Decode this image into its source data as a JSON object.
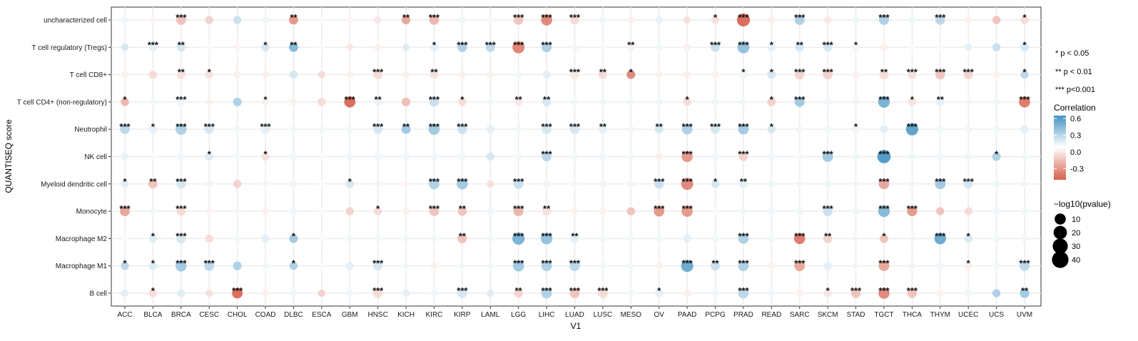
{
  "chart_data": {
    "type": "scatter",
    "subtype": "dot-heatmap",
    "xlabel": "V1",
    "ylabel": "QUANTISEQ score",
    "x_categories": [
      "ACC",
      "BLCA",
      "BRCA",
      "CESC",
      "CHOL",
      "COAD",
      "DLBC",
      "ESCA",
      "GBM",
      "HNSC",
      "KICH",
      "KIRC",
      "KIRP",
      "LAML",
      "LGG",
      "LIHC",
      "LUAD",
      "LUSC",
      "MESO",
      "OV",
      "PAAD",
      "PCPG",
      "PRAD",
      "READ",
      "SARC",
      "SKCM",
      "STAD",
      "TGCT",
      "THCA",
      "THYM",
      "UCEC",
      "UCS",
      "UVM"
    ],
    "y_categories": [
      "uncharacterized cell",
      "T cell regulatory (Tregs)",
      "T cell CD8+",
      "T cell CD4+ (non-regulatory)",
      "Neutrophil",
      "NK cell",
      "Myeloid dendritic cell",
      "Monocyte",
      "Macrophage M2",
      "Macrophage M1",
      "B cell"
    ],
    "color_scale": {
      "title": "Correlation",
      "ticks": [
        "0.6",
        "0.3",
        "0.0",
        "-0.3"
      ],
      "tick_values": [
        0.6,
        0.3,
        0.0,
        -0.3
      ],
      "min": -0.5,
      "max": 0.65,
      "low_color": "#d6604d",
      "mid_color": "#ffffff",
      "high_color": "#4393c3"
    },
    "size_scale": {
      "title": "−log10(pvalue)",
      "ticks": [
        "10",
        "20",
        "30",
        "40"
      ],
      "tick_values": [
        10,
        20,
        30,
        40
      ]
    },
    "significance_legend": [
      "* p < 0.05",
      "** p < 0.01",
      "*** p<0.001"
    ],
    "rows": [
      {
        "cell": "uncharacterized cell",
        "r": [
          0.05,
          -0.03,
          -0.2,
          -0.15,
          0.2,
          0.05,
          -0.35,
          0.02,
          -0.03,
          -0.08,
          -0.3,
          -0.25,
          0.05,
          0.03,
          -0.2,
          -0.4,
          -0.12,
          0.05,
          -0.05,
          0.08,
          -0.1,
          -0.1,
          -0.5,
          -0.05,
          0.3,
          -0.08,
          0.05,
          0.3,
          0.05,
          0.25,
          -0.05,
          -0.2,
          -0.12
        ],
        "p": [
          1,
          0.5,
          6,
          2,
          2,
          1,
          4,
          0.5,
          0.5,
          1,
          3,
          5,
          1,
          0.5,
          5,
          10,
          4,
          1,
          1,
          1,
          1,
          2,
          18,
          1,
          6,
          1,
          1,
          6,
          1,
          5,
          1,
          2,
          2
        ],
        "s": [
          "",
          "",
          "***",
          "",
          "",
          "",
          "**",
          "",
          "",
          "",
          "**",
          "***",
          "",
          "",
          "***",
          "***",
          "***",
          "",
          "",
          "",
          "",
          "*",
          "***",
          "",
          "***",
          "",
          "",
          "***",
          "",
          "***",
          "",
          "",
          "*"
        ]
      },
      {
        "cell": "T cell regulatory (Tregs)",
        "r": [
          0.15,
          0.1,
          0.15,
          0.02,
          -0.03,
          0.15,
          0.45,
          0.02,
          -0.08,
          -0.05,
          0.12,
          0.1,
          0.3,
          0.25,
          -0.42,
          0.3,
          0.05,
          0.02,
          -0.05,
          0.05,
          -0.05,
          0.2,
          0.4,
          0.1,
          0.15,
          0.15,
          0.05,
          -0.05,
          0.02,
          0.02,
          0.1,
          0.2,
          0.15
        ],
        "p": [
          1,
          3,
          3,
          0.5,
          0.5,
          2,
          4,
          0.5,
          0.5,
          1,
          1,
          2,
          5,
          4,
          14,
          6,
          1,
          0.5,
          1,
          1,
          1,
          4,
          14,
          2,
          3,
          3,
          2,
          1,
          0.5,
          0.5,
          1,
          2,
          2
        ],
        "s": [
          "",
          "***",
          "**",
          "",
          "",
          "*",
          "**",
          "",
          "",
          "",
          "",
          "*",
          "***",
          "***",
          "***",
          "***",
          "",
          "",
          "**",
          "",
          "",
          "***",
          "***",
          "*",
          "**",
          "***",
          "*",
          "",
          "",
          "",
          "",
          "",
          "*"
        ]
      },
      {
        "cell": "T cell CD8+",
        "r": [
          -0.05,
          -0.12,
          -0.1,
          -0.1,
          -0.05,
          -0.05,
          0.15,
          -0.12,
          -0.05,
          -0.12,
          -0.05,
          -0.1,
          -0.05,
          -0.05,
          0.05,
          0.1,
          -0.08,
          -0.12,
          -0.4,
          -0.05,
          -0.05,
          -0.05,
          0.05,
          0.15,
          -0.15,
          -0.15,
          -0.05,
          -0.12,
          -0.1,
          -0.2,
          -0.15,
          -0.05,
          0.25
        ],
        "p": [
          1,
          2,
          3,
          2,
          1,
          1,
          2,
          1,
          1,
          4,
          1,
          3,
          1,
          1,
          1,
          2,
          4,
          3,
          3,
          1,
          1,
          1,
          2,
          3,
          5,
          5,
          1,
          4,
          3,
          5,
          4,
          1,
          2
        ],
        "s": [
          "",
          "",
          "**",
          "*",
          "",
          "",
          "",
          "",
          "",
          "***",
          "",
          "**",
          "",
          "",
          "",
          "",
          "***",
          "**",
          "*",
          "",
          "",
          "",
          "*",
          "*",
          "***",
          "***",
          "",
          "**",
          "***",
          "***",
          "***",
          "",
          "*"
        ]
      },
      {
        "cell": "T cell CD4+ (non-regulatory)",
        "r": [
          -0.25,
          0.05,
          0.05,
          -0.05,
          0.3,
          -0.05,
          -0.05,
          -0.12,
          -0.5,
          0.08,
          -0.22,
          0.2,
          -0.12,
          0.05,
          -0.08,
          0.15,
          0.05,
          0.05,
          0.05,
          0.05,
          -0.12,
          0.05,
          0.05,
          -0.15,
          0.35,
          0.05,
          0.05,
          0.5,
          -0.1,
          0.1,
          0.05,
          0.05,
          -0.45
        ],
        "p": [
          2,
          1,
          4,
          0.5,
          3,
          1,
          1,
          2,
          10,
          2,
          3,
          5,
          2,
          1,
          2,
          3,
          1,
          1,
          1,
          1,
          2,
          1,
          1,
          3,
          6,
          1,
          1,
          12,
          2,
          2,
          1,
          1,
          10
        ],
        "s": [
          "*",
          "",
          "***",
          "",
          "",
          "*",
          "",
          "",
          "***",
          "**",
          "",
          "***",
          "*",
          "",
          "**",
          "**",
          "",
          "",
          "",
          "",
          "*",
          "",
          "",
          "*",
          "***",
          "",
          "",
          "***",
          "*",
          "**",
          "",
          "",
          "***"
        ]
      },
      {
        "cell": "Neutrophil",
        "r": [
          0.25,
          0.1,
          0.3,
          0.15,
          0.05,
          0.1,
          0.05,
          0.05,
          0.05,
          0.15,
          0.35,
          0.35,
          0.2,
          0.1,
          0.05,
          0.15,
          0.15,
          0.1,
          0.05,
          0.15,
          0.3,
          0.15,
          0.35,
          0.15,
          0.05,
          0.05,
          0.05,
          0.1,
          0.6,
          0.05,
          0.05,
          0.05,
          0.1
        ],
        "p": [
          5,
          2,
          10,
          4,
          1,
          4,
          1,
          1,
          1,
          4,
          4,
          10,
          5,
          2,
          1,
          5,
          5,
          3,
          1,
          3,
          8,
          4,
          8,
          2,
          1,
          1,
          2,
          2,
          15,
          1,
          1,
          1,
          2
        ],
        "s": [
          "***",
          "*",
          "***",
          "***",
          "",
          "***",
          "",
          "",
          "",
          "***",
          "**",
          "***",
          "***",
          "",
          "",
          "***",
          "***",
          "**",
          "",
          "**",
          "***",
          "***",
          "***",
          "*",
          "",
          "",
          "*",
          "",
          "***",
          "",
          "",
          "",
          ""
        ]
      },
      {
        "cell": "NK cell",
        "r": [
          0.08,
          0.03,
          0.05,
          0.12,
          0.03,
          -0.1,
          0.05,
          0.02,
          0.05,
          0.05,
          0.05,
          0.05,
          0.05,
          0.15,
          0.05,
          0.25,
          0.05,
          0.05,
          0.05,
          -0.05,
          -0.35,
          0.05,
          -0.15,
          0.05,
          0.03,
          0.35,
          0.05,
          0.65,
          0.05,
          0.05,
          0.05,
          0.3,
          0.05
        ],
        "p": [
          1,
          0.5,
          1,
          2,
          0.5,
          2,
          1,
          0.5,
          1,
          1,
          1,
          1,
          1,
          2,
          1,
          5,
          1,
          1,
          1,
          1,
          10,
          1,
          4,
          1,
          0.5,
          8,
          1,
          20,
          1,
          1,
          1,
          3,
          1
        ],
        "s": [
          "",
          "",
          "",
          "*",
          "",
          "*",
          "",
          "",
          "",
          "",
          "",
          "",
          "",
          "",
          "",
          "***",
          "",
          "",
          "",
          "",
          "***",
          "",
          "***",
          "",
          "",
          "***",
          "",
          "***",
          "",
          "",
          "",
          "*",
          ""
        ]
      },
      {
        "cell": "Myeloid dendritic cell",
        "r": [
          0.1,
          -0.2,
          0.15,
          0.05,
          -0.15,
          0.05,
          0.05,
          0.02,
          0.15,
          0.05,
          -0.03,
          0.3,
          0.35,
          -0.1,
          0.2,
          0.05,
          0.05,
          0.05,
          0.05,
          0.2,
          -0.4,
          0.15,
          0.1,
          0.05,
          0.05,
          0.05,
          0.05,
          -0.3,
          0.05,
          0.35,
          0.15,
          0.05,
          0.05
        ],
        "p": [
          2,
          4,
          5,
          1,
          2,
          1,
          1,
          0.5,
          2,
          1,
          1,
          8,
          10,
          1,
          6,
          1,
          1,
          1,
          1,
          5,
          14,
          2,
          3,
          1,
          1,
          1,
          1,
          8,
          1,
          8,
          5,
          1,
          1
        ],
        "s": [
          "*",
          "**",
          "***",
          "",
          "",
          "",
          "",
          "",
          "*",
          "",
          "",
          "***",
          "***",
          "",
          "***",
          "",
          "",
          "",
          "",
          "***",
          "***",
          "*",
          "**",
          "",
          "",
          "",
          "",
          "***",
          "",
          "***",
          "***",
          "",
          ""
        ]
      },
      {
        "cell": "Monocyte",
        "r": [
          -0.3,
          0.05,
          -0.12,
          -0.03,
          -0.03,
          -0.05,
          0.05,
          0.02,
          -0.15,
          -0.12,
          -0.05,
          -0.2,
          -0.2,
          0.05,
          -0.25,
          -0.1,
          -0.05,
          -0.05,
          -0.2,
          -0.35,
          -0.35,
          0.02,
          0.05,
          0.05,
          0.05,
          0.2,
          0.05,
          0.45,
          -0.35,
          -0.2,
          -0.12,
          0.05,
          0.05
        ],
        "p": [
          6,
          1,
          4,
          0.5,
          0.5,
          1,
          1,
          0.5,
          2,
          2,
          1,
          5,
          4,
          1,
          6,
          3,
          1,
          1,
          2,
          8,
          10,
          0.5,
          1,
          1,
          1,
          5,
          1,
          12,
          6,
          2,
          2,
          1,
          1
        ],
        "s": [
          "***",
          "",
          "***",
          "",
          "",
          "",
          "",
          "",
          "",
          "*",
          "",
          "***",
          "**",
          "",
          "***",
          "**",
          "",
          "",
          "",
          "***",
          "***",
          "",
          "",
          "",
          "",
          "***",
          "",
          "***",
          "***",
          "",
          "",
          "",
          ""
        ]
      },
      {
        "cell": "Macrophage M2",
        "r": [
          0.02,
          0.12,
          0.15,
          -0.12,
          0.05,
          0.1,
          0.35,
          0.02,
          0.05,
          0.05,
          0.05,
          0.05,
          -0.2,
          0.05,
          0.5,
          0.4,
          0.1,
          0.05,
          0.05,
          0.05,
          0.1,
          0.05,
          0.3,
          0.05,
          -0.45,
          -0.15,
          0.05,
          -0.2,
          0.05,
          0.55,
          0.15,
          0.05,
          0.05
        ],
        "p": [
          0.5,
          2,
          5,
          2,
          1,
          2,
          3,
          0.5,
          1,
          1,
          1,
          1,
          5,
          1,
          15,
          12,
          3,
          1,
          1,
          1,
          2,
          1,
          8,
          1,
          10,
          4,
          1,
          3,
          1,
          12,
          2,
          1,
          1
        ],
        "s": [
          "",
          "*",
          "***",
          "",
          "",
          "",
          "*",
          "",
          "",
          "",
          "",
          "",
          "**",
          "",
          "***",
          "***",
          "**",
          "",
          "",
          "",
          "",
          "",
          "***",
          "",
          "***",
          "**",
          "",
          "*",
          "",
          "***",
          "*",
          "",
          ""
        ]
      },
      {
        "cell": "Macrophage M1",
        "r": [
          0.25,
          0.12,
          0.35,
          0.25,
          0.3,
          0.05,
          0.3,
          0.02,
          0.1,
          0.15,
          0.05,
          -0.05,
          0.05,
          0.05,
          0.35,
          0.3,
          0.25,
          0.05,
          0.05,
          -0.05,
          0.55,
          0.2,
          0.3,
          -0.05,
          -0.3,
          0.1,
          0.05,
          -0.3,
          0.05,
          0.05,
          -0.05,
          0.05,
          0.25
        ],
        "p": [
          2,
          2,
          10,
          6,
          3,
          1,
          2,
          0.5,
          2,
          5,
          1,
          1,
          1,
          1,
          10,
          8,
          8,
          1,
          1,
          1,
          14,
          4,
          8,
          1,
          8,
          2,
          1,
          8,
          1,
          1,
          2,
          1,
          6
        ],
        "s": [
          "*",
          "*",
          "***",
          "***",
          "",
          "",
          "*",
          "",
          "",
          "***",
          "",
          "",
          "",
          "",
          "***",
          "***",
          "***",
          "",
          "",
          "",
          "***",
          "**",
          "***",
          "",
          "***",
          "",
          "",
          "***",
          "",
          "",
          "*",
          "",
          "***"
        ]
      },
      {
        "cell": "B cell",
        "r": [
          0.1,
          -0.12,
          0.12,
          -0.1,
          -0.5,
          -0.05,
          0.05,
          -0.15,
          0.05,
          -0.12,
          0.1,
          0.05,
          0.15,
          0.12,
          -0.15,
          0.3,
          -0.2,
          -0.12,
          0.05,
          0.1,
          -0.05,
          0.05,
          0.25,
          0.05,
          -0.05,
          -0.08,
          -0.2,
          -0.4,
          -0.2,
          -0.05,
          0.05,
          0.3,
          0.35
        ],
        "p": [
          1,
          2,
          2,
          1,
          8,
          1,
          1,
          1,
          1,
          5,
          1,
          1,
          5,
          1,
          3,
          8,
          6,
          5,
          1,
          2,
          1,
          1,
          8,
          1,
          1,
          2,
          5,
          10,
          5,
          1,
          1,
          2,
          5
        ],
        "s": [
          "",
          "*",
          "",
          "",
          "***",
          "",
          "",
          "",
          "",
          "***",
          "",
          "",
          "***",
          "",
          "**",
          "***",
          "***",
          "***",
          "",
          "*",
          "",
          "",
          "***",
          "",
          "",
          "*",
          "***",
          "***",
          "***",
          "",
          "",
          "",
          "**"
        ]
      }
    ]
  }
}
